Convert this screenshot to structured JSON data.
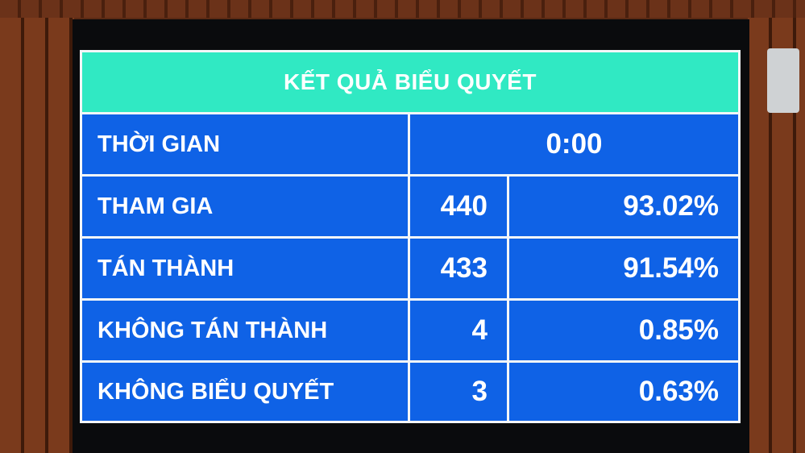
{
  "title": "KẾT QUẢ BIỂU QUYẾT",
  "time": {
    "label": "THỜI GIAN",
    "value": "0:00"
  },
  "rows": [
    {
      "label": "THAM GIA",
      "count": "440",
      "percent": "93.02%"
    },
    {
      "label": "TÁN THÀNH",
      "count": "433",
      "percent": "91.54%"
    },
    {
      "label": "KHÔNG TÁN THÀNH",
      "count": "4",
      "percent": "0.85%"
    },
    {
      "label": "KHÔNG BIỂU QUYẾT",
      "count": "3",
      "percent": "0.63%"
    }
  ],
  "colors": {
    "header": "#30e9c3",
    "cell": "#0f62e6",
    "text": "#ffffff"
  }
}
